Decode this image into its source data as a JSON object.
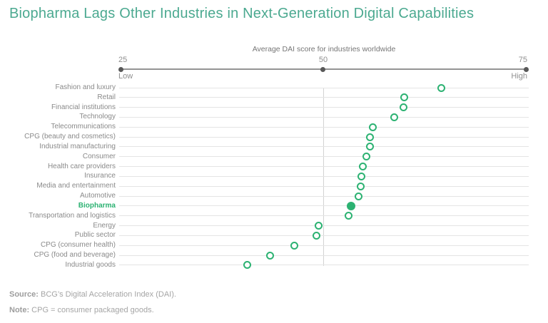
{
  "page": {
    "title": "Biopharma Lags Other Industries in Next-Generation Digital Capabilities"
  },
  "chart_data": {
    "type": "scatter",
    "title": "Average DAI score for industries worldwide",
    "xlim": [
      25,
      75
    ],
    "ticks": [
      "25",
      "50",
      "75"
    ],
    "axis_min_label": "Low",
    "axis_max_label": "High",
    "grid": "horizontal-per-category",
    "midline_value": 50,
    "categories": [
      "Fashion and luxury",
      "Retail",
      "Financial institutions",
      "Technology",
      "Telecommunications",
      "CPG (beauty and cosmetics)",
      "Industrial manufacturing",
      "Consumer",
      "Health care providers",
      "Insurance",
      "Media and entertainment",
      "Automotive",
      "Biopharma",
      "Transportation and logistics",
      "Energy",
      "Public sector",
      "CPG (consumer health)",
      "CPG (food and beverage)",
      "Industrial goods"
    ],
    "values": [
      64.6,
      60.0,
      59.9,
      58.8,
      56.1,
      55.8,
      55.8,
      55.3,
      54.9,
      54.7,
      54.6,
      54.4,
      53.4,
      53.1,
      49.4,
      49.2,
      46.4,
      43.4,
      40.6
    ],
    "highlight_category": "Biopharma",
    "marker_style": "open-circle",
    "highlight_marker_style": "filled-circle"
  },
  "footer": {
    "source_label": "Source:",
    "source_text": " BCG’s Digital Acceleration Index (DAI).",
    "note_label": "Note:",
    "note_text": " CPG = consumer packaged goods."
  },
  "colors": {
    "title_teal": "#4ba990",
    "dot_green": "#2cb272",
    "label_gray": "#8a8a8a",
    "grid_gray": "#e4e4e4",
    "axis_gray": "#949494",
    "footer_gray": "#a5a5a5"
  }
}
